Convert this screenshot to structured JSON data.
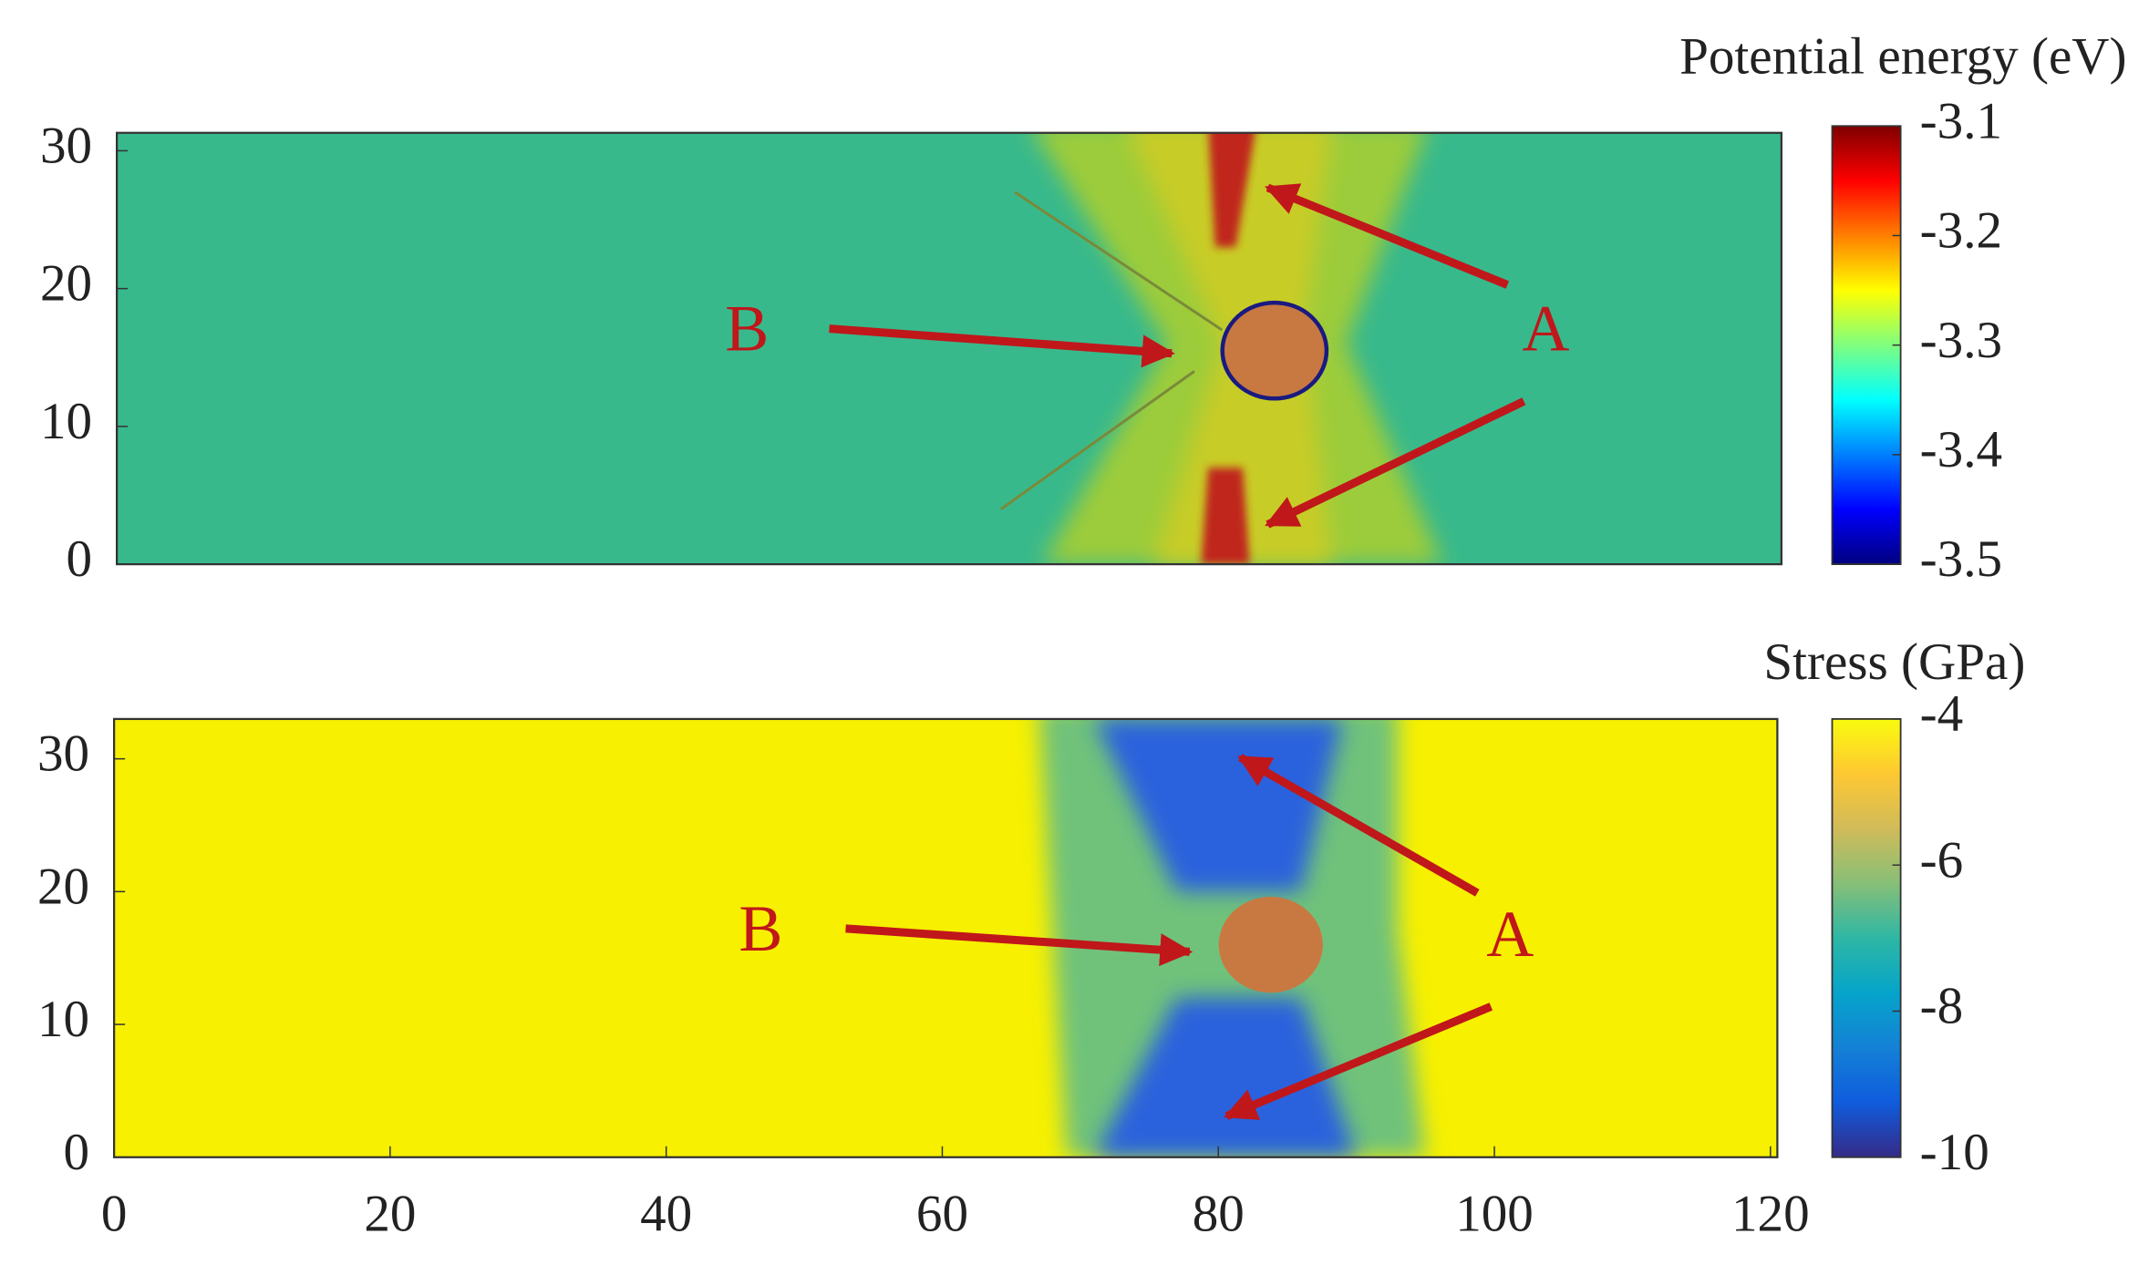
{
  "chart_data": [
    {
      "type": "heatmap",
      "xlim": [
        0,
        120.5
      ],
      "ylim": [
        0,
        31.3
      ],
      "yticks": [
        0,
        10,
        20,
        30
      ],
      "colorbar": {
        "label": "Potential energy (eV)",
        "clim": [
          -3.5,
          -3.1
        ],
        "ticks": [
          -3.5,
          -3.4,
          -3.3,
          -3.2,
          -3.1
        ],
        "colormap": "jet"
      },
      "annotations": [
        "B",
        "A"
      ]
    },
    {
      "type": "heatmap",
      "xlim": [
        0,
        120.5
      ],
      "ylim": [
        0,
        33
      ],
      "xticks": [
        0,
        20,
        40,
        60,
        80,
        100,
        120
      ],
      "yticks": [
        0,
        10,
        20,
        30
      ],
      "colorbar": {
        "label": "Stress (GPa)",
        "clim": [
          -10,
          -4
        ],
        "ticks": [
          -10,
          -8,
          -6,
          -4
        ],
        "colormap": "parula"
      },
      "annotations": [
        "B",
        "A"
      ]
    }
  ]
}
